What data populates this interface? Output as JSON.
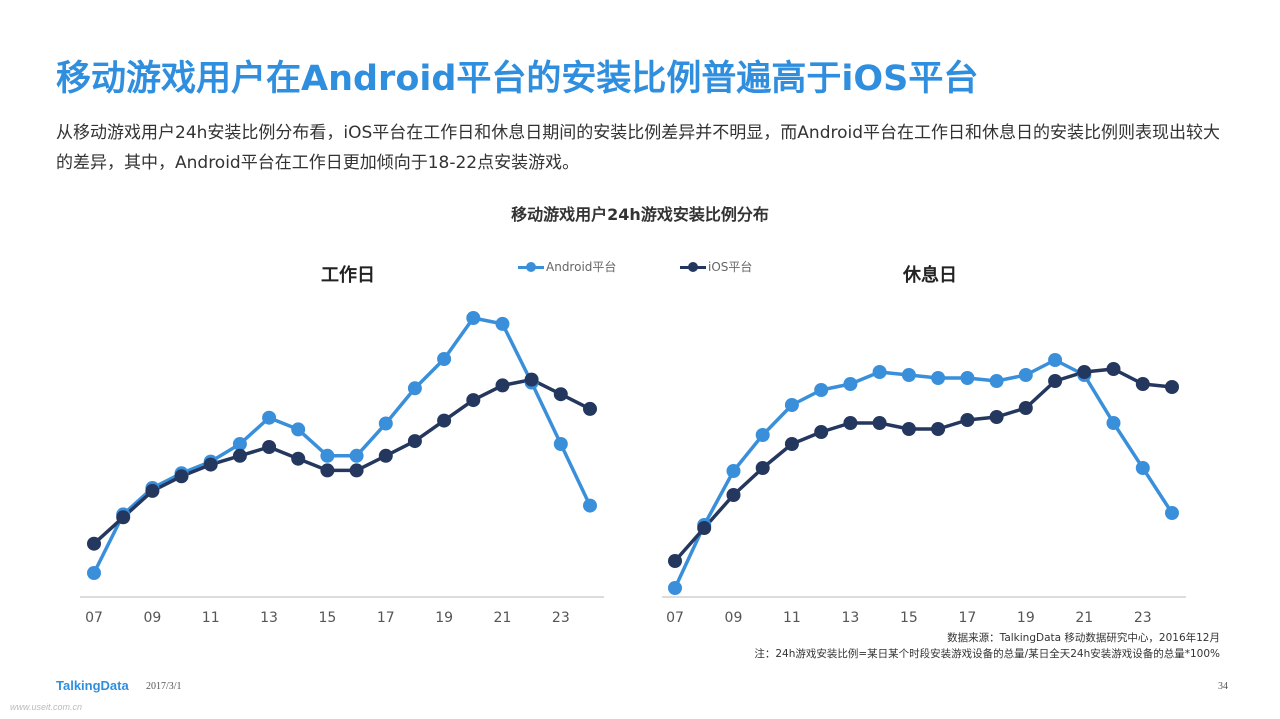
{
  "title": "移动游戏用户在Android平台的安装比例普遍高于iOS平台",
  "intro": "从移动游戏用户24h安装比例分布看，iOS平台在工作日和休息日期间的安装比例差异并不明显，而Android平台在工作日和休息日的安装比例则表现出较大的差异，其中，Android平台在工作日更加倾向于18-22点安装游戏。",
  "footer": {
    "source": "数据来源：TalkingData 移动数据研究中心，2016年12月",
    "note": "注：24h游戏安装比例=某日某个时段安装游戏设备的总量/某日全天24h安装游戏设备的总量*100%",
    "logo": "TalkingData",
    "date": "2017/3/1",
    "page": "34",
    "watermark": "www.useit.com.cn"
  },
  "colors": {
    "android": "#3a8fdb",
    "ios": "#24375e",
    "axis": "#d0d0d0",
    "title": "#2f8fde"
  },
  "chart_data": {
    "type": "line",
    "title": "移动游戏用户24h游戏安装比例分布",
    "legend": [
      "Android平台",
      "iOS平台"
    ],
    "legend_position": "top-center",
    "grid": false,
    "y_axis_shown": false,
    "panels": [
      {
        "title": "工作日",
        "x": [
          "07",
          "08",
          "09",
          "10",
          "11",
          "12",
          "13",
          "14",
          "15",
          "16",
          "17",
          "18",
          "19",
          "20",
          "21",
          "22",
          "23",
          "24"
        ],
        "tick_labels": [
          "07",
          "09",
          "11",
          "13",
          "15",
          "17",
          "19",
          "21",
          "23"
        ],
        "ylim": [
          0,
          100
        ],
        "series": [
          {
            "name": "Android平台",
            "values": [
              10,
              30,
              39,
              44,
              48,
              54,
              63,
              59,
              50,
              50,
              61,
              73,
              83,
              97,
              95,
              75,
              54,
              33
            ]
          },
          {
            "name": "iOS平台",
            "values": [
              20,
              29,
              38,
              43,
              47,
              50,
              53,
              49,
              45,
              45,
              50,
              55,
              62,
              69,
              74,
              76,
              71,
              66
            ]
          }
        ]
      },
      {
        "title": "休息日",
        "x": [
          "07",
          "08",
          "09",
          "10",
          "11",
          "12",
          "13",
          "14",
          "15",
          "16",
          "17",
          "18",
          "19",
          "20",
          "21",
          "22",
          "23",
          "24"
        ],
        "tick_labels": [
          "07",
          "09",
          "11",
          "13",
          "15",
          "17",
          "19",
          "21",
          "23"
        ],
        "ylim": [
          0,
          100
        ],
        "series": [
          {
            "name": "Android平台",
            "values": [
              5,
              26,
              44,
              56,
              66,
              71,
              73,
              77,
              76,
              75,
              75,
              74,
              76,
              81,
              76,
              60,
              45,
              30
            ]
          },
          {
            "name": "iOS平台",
            "values": [
              14,
              25,
              36,
              45,
              53,
              57,
              60,
              60,
              58,
              58,
              61,
              62,
              65,
              74,
              77,
              78,
              73,
              72
            ]
          }
        ]
      }
    ]
  }
}
